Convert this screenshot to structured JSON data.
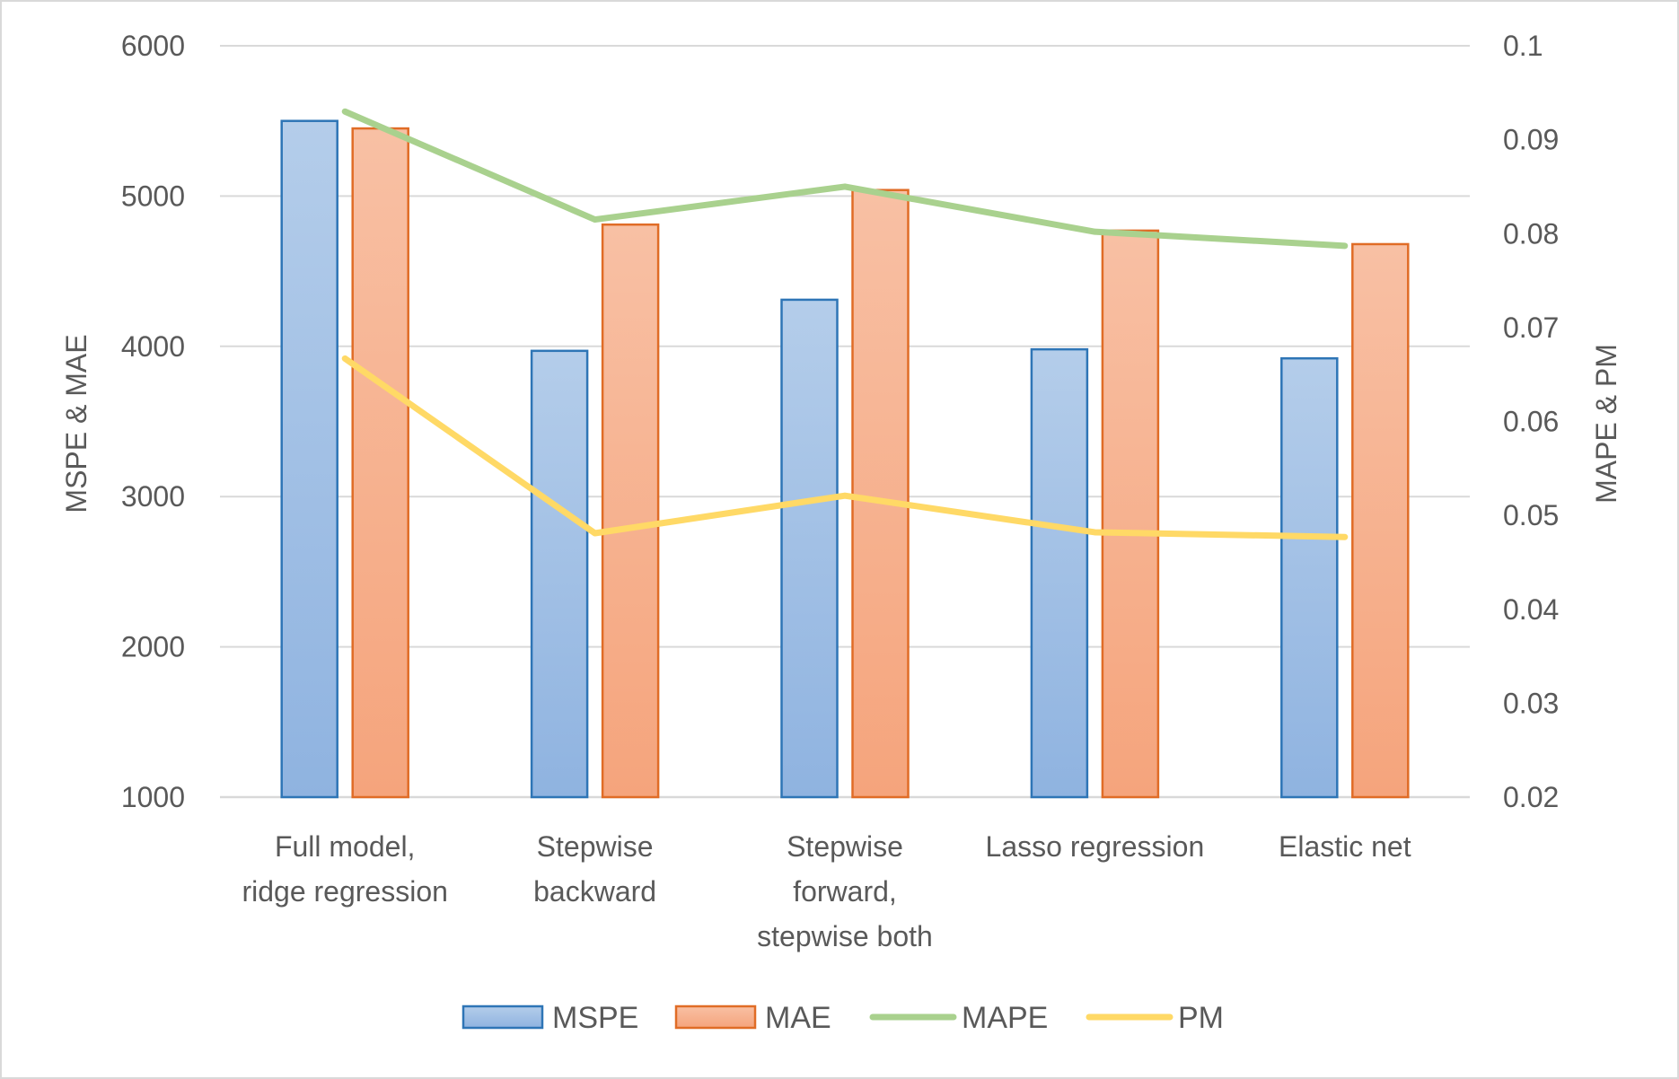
{
  "chart_data": {
    "type": "bar",
    "categories": [
      [
        "Full model,",
        "ridge regression"
      ],
      [
        "Stepwise",
        "backward"
      ],
      [
        "Stepwise",
        "forward,",
        "stepwise both"
      ],
      [
        "Lasso regression"
      ],
      [
        "Elastic net"
      ]
    ],
    "series": [
      {
        "name": "MSPE",
        "kind": "bar",
        "axis": "left",
        "values": [
          5500,
          3970,
          4310,
          3980,
          3920
        ],
        "color": "#5b9bd5"
      },
      {
        "name": "MAE",
        "kind": "bar",
        "axis": "left",
        "values": [
          5450,
          4810,
          5040,
          4770,
          4680
        ],
        "color": "#ed7d31"
      },
      {
        "name": "MAPE",
        "kind": "line",
        "axis": "right",
        "values": [
          0.093,
          0.0815,
          0.085,
          0.0802,
          0.0787
        ],
        "color": "#a9d18e"
      },
      {
        "name": "PM",
        "kind": "line",
        "axis": "right",
        "values": [
          0.0667,
          0.0481,
          0.0521,
          0.0482,
          0.0477
        ],
        "color": "#ffd966"
      }
    ],
    "ylabel": "MSPE & MAE",
    "y2label": "MAPE & PM",
    "ylim": [
      1000,
      6000
    ],
    "yticks": [
      "1000",
      "2000",
      "3000",
      "4000",
      "5000",
      "6000"
    ],
    "y2lim": [
      0.02,
      0.1
    ],
    "y2ticks": [
      "0.02",
      "0.03",
      "0.04",
      "0.05",
      "0.06",
      "0.07",
      "0.08",
      "0.09",
      "0.1"
    ],
    "grid": true,
    "legend": "bottom"
  }
}
